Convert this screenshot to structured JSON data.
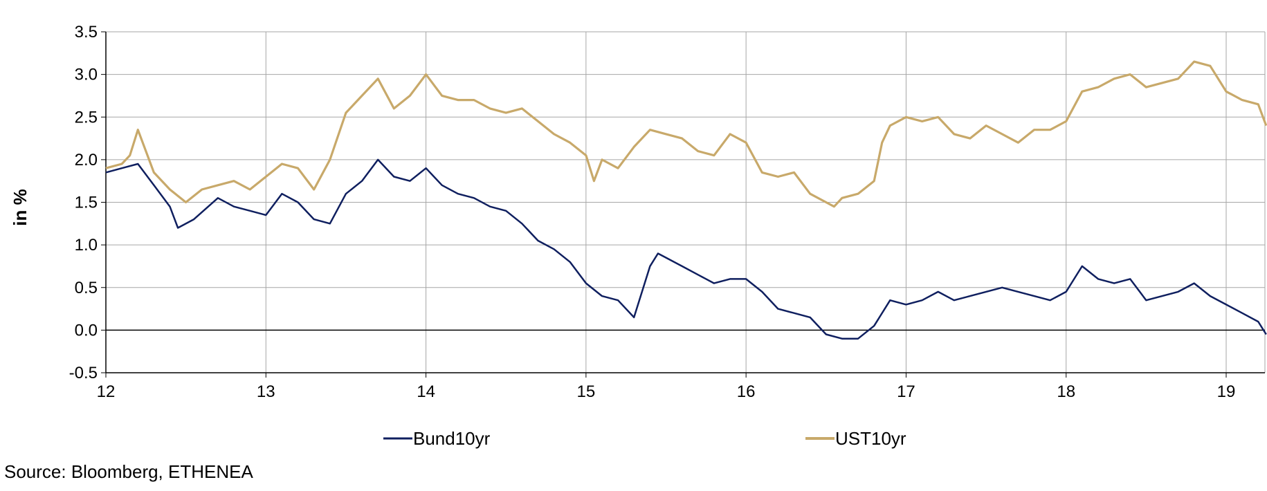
{
  "source": "Source: Bloomberg, ETHENEA",
  "colors": {
    "Bund10yr": "#0f1f5f",
    "UST10yr": "#c8a96a",
    "grid": "#a6a6a6",
    "axis": "#000000"
  },
  "chart_data": {
    "type": "line",
    "title": "",
    "xlabel": "",
    "ylabel": "in %",
    "ylim": [
      -0.5,
      3.5
    ],
    "xlim": [
      12,
      19.25
    ],
    "x_tick_labels": [
      "12",
      "13",
      "14",
      "15",
      "16",
      "17",
      "18",
      "19"
    ],
    "y_tick_labels": [
      "-0.5",
      "0.0",
      "0.5",
      "1.0",
      "1.5",
      "2.0",
      "2.5",
      "3.0",
      "3.5"
    ],
    "grid": true,
    "legend": "bottom",
    "series": [
      {
        "name": "Bund10yr",
        "x": [
          12.0,
          12.1,
          12.2,
          12.3,
          12.4,
          12.45,
          12.55,
          12.7,
          12.8,
          12.9,
          13.0,
          13.1,
          13.2,
          13.3,
          13.4,
          13.5,
          13.6,
          13.7,
          13.8,
          13.9,
          14.0,
          14.1,
          14.2,
          14.3,
          14.4,
          14.5,
          14.6,
          14.7,
          14.8,
          14.9,
          15.0,
          15.1,
          15.2,
          15.3,
          15.4,
          15.45,
          15.5,
          15.6,
          15.7,
          15.8,
          15.9,
          16.0,
          16.1,
          16.2,
          16.3,
          16.4,
          16.5,
          16.6,
          16.7,
          16.8,
          16.9,
          17.0,
          17.1,
          17.2,
          17.3,
          17.4,
          17.5,
          17.6,
          17.7,
          17.8,
          17.9,
          18.0,
          18.1,
          18.2,
          18.3,
          18.4,
          18.5,
          18.6,
          18.7,
          18.8,
          18.9,
          19.0,
          19.1,
          19.2,
          19.25
        ],
        "values": [
          1.85,
          1.9,
          1.95,
          1.7,
          1.45,
          1.2,
          1.3,
          1.55,
          1.45,
          1.4,
          1.35,
          1.6,
          1.5,
          1.3,
          1.25,
          1.6,
          1.75,
          2.0,
          1.8,
          1.75,
          1.9,
          1.7,
          1.6,
          1.55,
          1.45,
          1.4,
          1.25,
          1.05,
          0.95,
          0.8,
          0.55,
          0.4,
          0.35,
          0.15,
          0.75,
          0.9,
          0.85,
          0.75,
          0.65,
          0.55,
          0.6,
          0.6,
          0.45,
          0.25,
          0.2,
          0.15,
          -0.05,
          -0.1,
          -0.1,
          0.05,
          0.35,
          0.3,
          0.35,
          0.45,
          0.35,
          0.4,
          0.45,
          0.5,
          0.45,
          0.4,
          0.35,
          0.45,
          0.75,
          0.6,
          0.55,
          0.6,
          0.35,
          0.4,
          0.45,
          0.55,
          0.4,
          0.3,
          0.2,
          0.1,
          -0.05
        ]
      },
      {
        "name": "UST10yr",
        "x": [
          12.0,
          12.1,
          12.15,
          12.2,
          12.3,
          12.4,
          12.5,
          12.6,
          12.7,
          12.8,
          12.9,
          13.0,
          13.1,
          13.2,
          13.3,
          13.4,
          13.5,
          13.6,
          13.7,
          13.8,
          13.9,
          14.0,
          14.1,
          14.2,
          14.3,
          14.4,
          14.5,
          14.6,
          14.7,
          14.8,
          14.9,
          15.0,
          15.05,
          15.1,
          15.2,
          15.3,
          15.4,
          15.5,
          15.6,
          15.7,
          15.8,
          15.9,
          16.0,
          16.1,
          16.2,
          16.3,
          16.4,
          16.5,
          16.55,
          16.6,
          16.7,
          16.8,
          16.85,
          16.9,
          17.0,
          17.1,
          17.2,
          17.3,
          17.4,
          17.5,
          17.6,
          17.7,
          17.8,
          17.9,
          18.0,
          18.1,
          18.2,
          18.3,
          18.4,
          18.5,
          18.6,
          18.7,
          18.8,
          18.9,
          19.0,
          19.1,
          19.2,
          19.25
        ],
        "values": [
          1.9,
          1.95,
          2.05,
          2.35,
          1.85,
          1.65,
          1.5,
          1.65,
          1.7,
          1.75,
          1.65,
          1.8,
          1.95,
          1.9,
          1.65,
          2.0,
          2.55,
          2.75,
          2.95,
          2.6,
          2.75,
          3.0,
          2.75,
          2.7,
          2.7,
          2.6,
          2.55,
          2.6,
          2.45,
          2.3,
          2.2,
          2.05,
          1.75,
          2.0,
          1.9,
          2.15,
          2.35,
          2.3,
          2.25,
          2.1,
          2.05,
          2.3,
          2.2,
          1.85,
          1.8,
          1.85,
          1.6,
          1.5,
          1.45,
          1.55,
          1.6,
          1.75,
          2.2,
          2.4,
          2.5,
          2.45,
          2.5,
          2.3,
          2.25,
          2.4,
          2.3,
          2.2,
          2.35,
          2.35,
          2.45,
          2.8,
          2.85,
          2.95,
          3.0,
          2.85,
          2.9,
          2.95,
          3.15,
          3.1,
          2.8,
          2.7,
          2.65,
          2.4
        ]
      }
    ]
  }
}
